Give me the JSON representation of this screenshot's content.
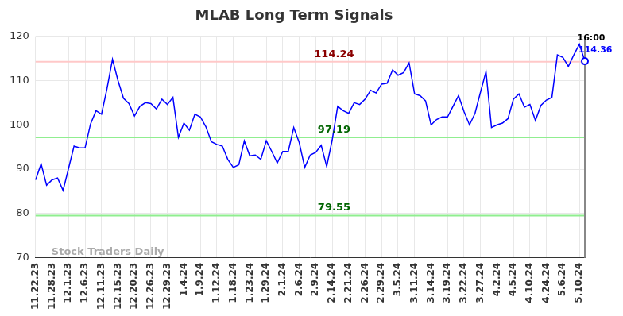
{
  "chart_data": {
    "type": "line",
    "title": "MLAB Long Term Signals",
    "categories": [
      "11.22.23",
      null,
      null,
      "11.28.23",
      null,
      null,
      "12.1.23",
      null,
      null,
      "12.6.23",
      null,
      null,
      "12.11.23",
      null,
      null,
      "12.15.23",
      null,
      null,
      "12.20.23",
      null,
      null,
      "12.26.23",
      null,
      null,
      "12.29.23",
      null,
      null,
      "1.4.24",
      null,
      null,
      "1.9.24",
      null,
      null,
      "1.12.24",
      null,
      null,
      "1.18.24",
      null,
      null,
      "1.23.24",
      null,
      null,
      "1.29.24",
      null,
      null,
      "2.1.24",
      null,
      null,
      "2.6.24",
      null,
      null,
      "2.9.24",
      null,
      null,
      "2.14.24",
      null,
      null,
      "2.21.24",
      null,
      null,
      "2.26.24",
      null,
      null,
      "2.29.24",
      null,
      null,
      "3.5.24",
      null,
      null,
      "3.11.24",
      null,
      null,
      "3.14.24",
      null,
      null,
      "3.19.24",
      null,
      null,
      "3.22.24",
      null,
      null,
      "3.27.24",
      null,
      null,
      "4.2.24",
      null,
      null,
      "4.5.24",
      null,
      null,
      "4.10.24",
      null,
      null,
      "4.24.24",
      null,
      null,
      "5.6.24",
      null,
      null,
      "5.10.24",
      null
    ],
    "values": [
      87.6,
      91.2,
      86.4,
      87.6,
      88,
      85.2,
      90.2,
      95.2,
      94.8,
      94.8,
      100.2,
      103.2,
      102.4,
      108.2,
      114.8,
      110,
      106,
      104.8,
      102,
      104.2,
      105,
      104.8,
      103.6,
      105.8,
      104.6,
      106.2,
      97.2,
      100.4,
      98.8,
      102.4,
      101.8,
      99.6,
      96.2,
      95.6,
      95.2,
      92.2,
      90.4,
      91,
      96.4,
      93,
      93.2,
      92.2,
      96.4,
      94,
      91.4,
      94,
      94,
      99.4,
      96,
      90.4,
      93.2,
      93.8,
      95.4,
      90.6,
      96.6,
      104.2,
      103.2,
      102.6,
      105,
      104.6,
      105.8,
      107.8,
      107.2,
      109.2,
      109.4,
      112.4,
      111.2,
      111.8,
      114,
      107,
      106.6,
      105.4,
      100,
      101.2,
      101.8,
      101.8,
      104.2,
      106.6,
      103,
      100,
      102.6,
      107.4,
      112,
      99.4,
      100,
      100.4,
      101.4,
      105.8,
      107,
      104,
      104.6,
      101,
      104.4,
      105.6,
      106.2,
      115.8,
      115.2,
      113.2,
      115.8,
      118.2,
      114.36
    ],
    "color": "#0000ff",
    "ylim": [
      70,
      120
    ],
    "yticks": [
      70,
      80,
      90,
      100,
      110,
      120
    ],
    "grid": true,
    "horizontal_lines": [
      {
        "value": 114.24,
        "label": "114.24",
        "color": "#ffc8c8",
        "label_color": "#8b0000"
      },
      {
        "value": 97.19,
        "label": "97.19",
        "color": "#90ee90",
        "label_color": "#006400"
      },
      {
        "value": 79.55,
        "label": "79.55",
        "color": "#90ee90",
        "label_color": "#006400"
      }
    ],
    "end_label": {
      "time": "16:00",
      "value": 114.36,
      "label": "114.36"
    },
    "watermark": "Stock Traders Daily"
  }
}
